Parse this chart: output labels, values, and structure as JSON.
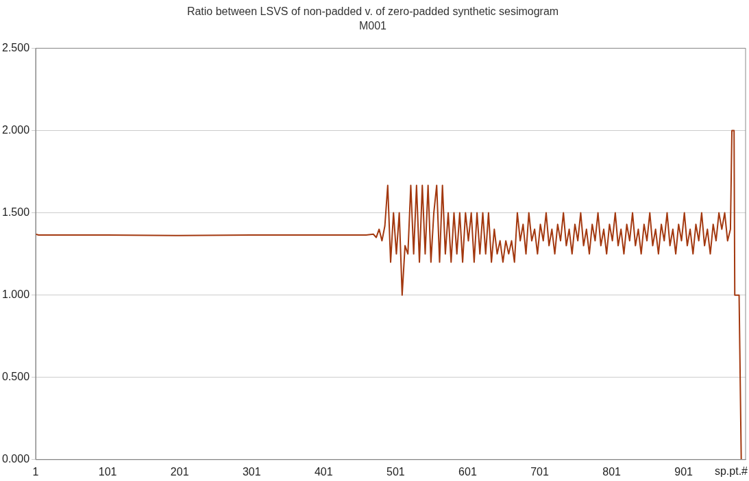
{
  "chart_data": {
    "type": "line",
    "title": "Ratio between LSVS of non-padded v. of zero-padded synthetic sesimogram",
    "subtitle": "M001",
    "xlabel": "sp.pt.#",
    "xlim": [
      1,
      987
    ],
    "xticks": [
      1,
      101,
      201,
      301,
      401,
      501,
      601,
      701,
      801,
      901
    ],
    "ylim": [
      0,
      2.5
    ],
    "yticks": [
      {
        "value": 0,
        "label": "0.000"
      },
      {
        "value": 0.5,
        "label": "0.500"
      },
      {
        "value": 1,
        "label": "1.000"
      },
      {
        "value": 1.5,
        "label": "1.500"
      },
      {
        "value": 2,
        "label": "2.000"
      },
      {
        "value": 2.5,
        "label": "2.500"
      }
    ],
    "grid": "y",
    "marker": "none",
    "line_style": "solid",
    "series": [
      {
        "color": "#a3380f",
        "x": [
          1,
          5,
          100,
          200,
          300,
          400,
          460,
          470,
          474,
          478,
          482,
          486,
          490,
          494,
          498,
          502,
          506,
          510,
          514,
          518,
          522,
          526,
          530,
          534,
          538,
          542,
          546,
          550,
          554,
          558,
          562,
          566,
          570,
          574,
          578,
          582,
          586,
          590,
          594,
          598,
          602,
          606,
          610,
          614,
          618,
          622,
          626,
          630,
          634,
          638,
          642,
          646,
          650,
          654,
          658,
          662,
          666,
          670,
          674,
          678,
          682,
          686,
          690,
          694,
          698,
          702,
          706,
          710,
          714,
          718,
          722,
          726,
          730,
          734,
          738,
          742,
          746,
          750,
          754,
          758,
          762,
          766,
          770,
          774,
          778,
          782,
          786,
          790,
          794,
          798,
          802,
          806,
          810,
          814,
          818,
          822,
          826,
          830,
          834,
          838,
          842,
          846,
          850,
          854,
          858,
          862,
          866,
          870,
          874,
          878,
          882,
          886,
          890,
          894,
          898,
          902,
          906,
          910,
          914,
          918,
          922,
          926,
          930,
          934,
          938,
          942,
          946,
          950,
          954,
          958,
          962,
          966,
          968,
          971,
          972,
          978,
          981
        ],
        "values": [
          1.37,
          1.365,
          1.365,
          1.362,
          1.365,
          1.365,
          1.365,
          1.37,
          1.35,
          1.4,
          1.33,
          1.42,
          1.667,
          1.2,
          1.5,
          1.25,
          1.5,
          1.0,
          1.3,
          1.25,
          1.667,
          1.25,
          1.667,
          1.2,
          1.667,
          1.25,
          1.667,
          1.2,
          1.5,
          1.667,
          1.2,
          1.667,
          1.25,
          1.5,
          1.2,
          1.5,
          1.25,
          1.5,
          1.2,
          1.5,
          1.33,
          1.5,
          1.2,
          1.5,
          1.25,
          1.5,
          1.25,
          1.5,
          1.2,
          1.4,
          1.25,
          1.33,
          1.2,
          1.33,
          1.25,
          1.33,
          1.2,
          1.5,
          1.33,
          1.43,
          1.25,
          1.5,
          1.33,
          1.4,
          1.25,
          1.43,
          1.33,
          1.5,
          1.3,
          1.4,
          1.25,
          1.43,
          1.33,
          1.5,
          1.3,
          1.4,
          1.25,
          1.43,
          1.33,
          1.5,
          1.3,
          1.4,
          1.25,
          1.43,
          1.33,
          1.5,
          1.3,
          1.4,
          1.25,
          1.43,
          1.33,
          1.5,
          1.3,
          1.4,
          1.25,
          1.43,
          1.33,
          1.5,
          1.3,
          1.4,
          1.25,
          1.43,
          1.33,
          1.5,
          1.3,
          1.4,
          1.25,
          1.43,
          1.33,
          1.5,
          1.3,
          1.4,
          1.25,
          1.43,
          1.33,
          1.5,
          1.3,
          1.4,
          1.25,
          1.43,
          1.33,
          1.5,
          1.3,
          1.4,
          1.25,
          1.43,
          1.33,
          1.5,
          1.4,
          1.5,
          1.33,
          1.4,
          2.0,
          2.0,
          1.0,
          1.0,
          0.0
        ]
      }
    ]
  }
}
